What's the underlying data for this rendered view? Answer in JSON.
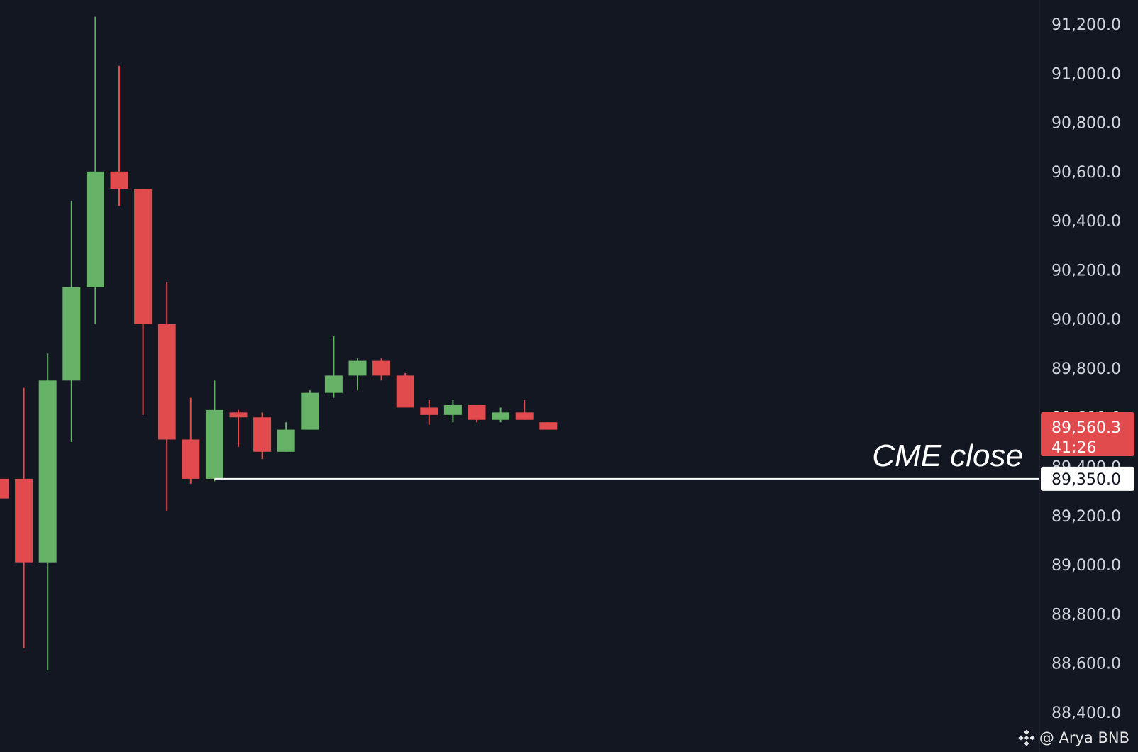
{
  "chart_data": {
    "type": "candlestick",
    "ylim": [
      88350,
      91300
    ],
    "grid": false,
    "colors": {
      "background": "#131722",
      "up": "#66b266",
      "down": "#e24b4e",
      "text": "#d1d4dc",
      "hline": "#ffffff"
    },
    "y_ticks": [
      "91,200.0",
      "91,000.0",
      "90,800.0",
      "90,600.0",
      "90,400.0",
      "90,200.0",
      "90,000.0",
      "89,800.0",
      "89,600.0",
      "89,400.0",
      "89,200.0",
      "89,000.0",
      "88,800.0",
      "88,600.0",
      "88,400.0"
    ],
    "y_tick_values": [
      91200,
      91000,
      90800,
      90600,
      90400,
      90200,
      90000,
      89800,
      89600,
      89400,
      89200,
      89000,
      88800,
      88600,
      88400
    ],
    "candles": [
      {
        "o": 89350,
        "h": 89350,
        "l": 89270,
        "c": 89270
      },
      {
        "o": 89350,
        "h": 89720,
        "l": 88660,
        "c": 89010
      },
      {
        "o": 89010,
        "h": 89860,
        "l": 88570,
        "c": 89750
      },
      {
        "o": 89750,
        "h": 90480,
        "l": 89500,
        "c": 90130
      },
      {
        "o": 90130,
        "h": 91230,
        "l": 89980,
        "c": 90600
      },
      {
        "o": 90600,
        "h": 91030,
        "l": 90460,
        "c": 90530
      },
      {
        "o": 90530,
        "h": 90530,
        "l": 89610,
        "c": 89980
      },
      {
        "o": 89980,
        "h": 90150,
        "l": 89220,
        "c": 89510
      },
      {
        "o": 89510,
        "h": 89680,
        "l": 89330,
        "c": 89350
      },
      {
        "o": 89350,
        "h": 89750,
        "l": 89340,
        "c": 89630
      },
      {
        "o": 89620,
        "h": 89630,
        "l": 89480,
        "c": 89600
      },
      {
        "o": 89600,
        "h": 89620,
        "l": 89430,
        "c": 89460
      },
      {
        "o": 89460,
        "h": 89580,
        "l": 89460,
        "c": 89550
      },
      {
        "o": 89550,
        "h": 89710,
        "l": 89550,
        "c": 89700
      },
      {
        "o": 89700,
        "h": 89930,
        "l": 89680,
        "c": 89770
      },
      {
        "o": 89770,
        "h": 89840,
        "l": 89710,
        "c": 89830
      },
      {
        "o": 89830,
        "h": 89840,
        "l": 89750,
        "c": 89770
      },
      {
        "o": 89770,
        "h": 89780,
        "l": 89640,
        "c": 89640
      },
      {
        "o": 89640,
        "h": 89670,
        "l": 89570,
        "c": 89610
      },
      {
        "o": 89610,
        "h": 89670,
        "l": 89580,
        "c": 89650
      },
      {
        "o": 89650,
        "h": 89650,
        "l": 89580,
        "c": 89590
      },
      {
        "o": 89590,
        "h": 89640,
        "l": 89580,
        "c": 89620
      },
      {
        "o": 89620,
        "h": 89670,
        "l": 89590,
        "c": 89590
      },
      {
        "o": 89580,
        "h": 89580,
        "l": 89550,
        "c": 89550
      }
    ],
    "hline": {
      "value": 89350,
      "label": "CME close",
      "axis_label": "89,350.0"
    },
    "last_price": {
      "price": "89,560.3",
      "countdown": "41:26",
      "value": 89560.3
    }
  },
  "watermark": {
    "icon": "binance-icon",
    "text": "@ Arya BNB"
  }
}
